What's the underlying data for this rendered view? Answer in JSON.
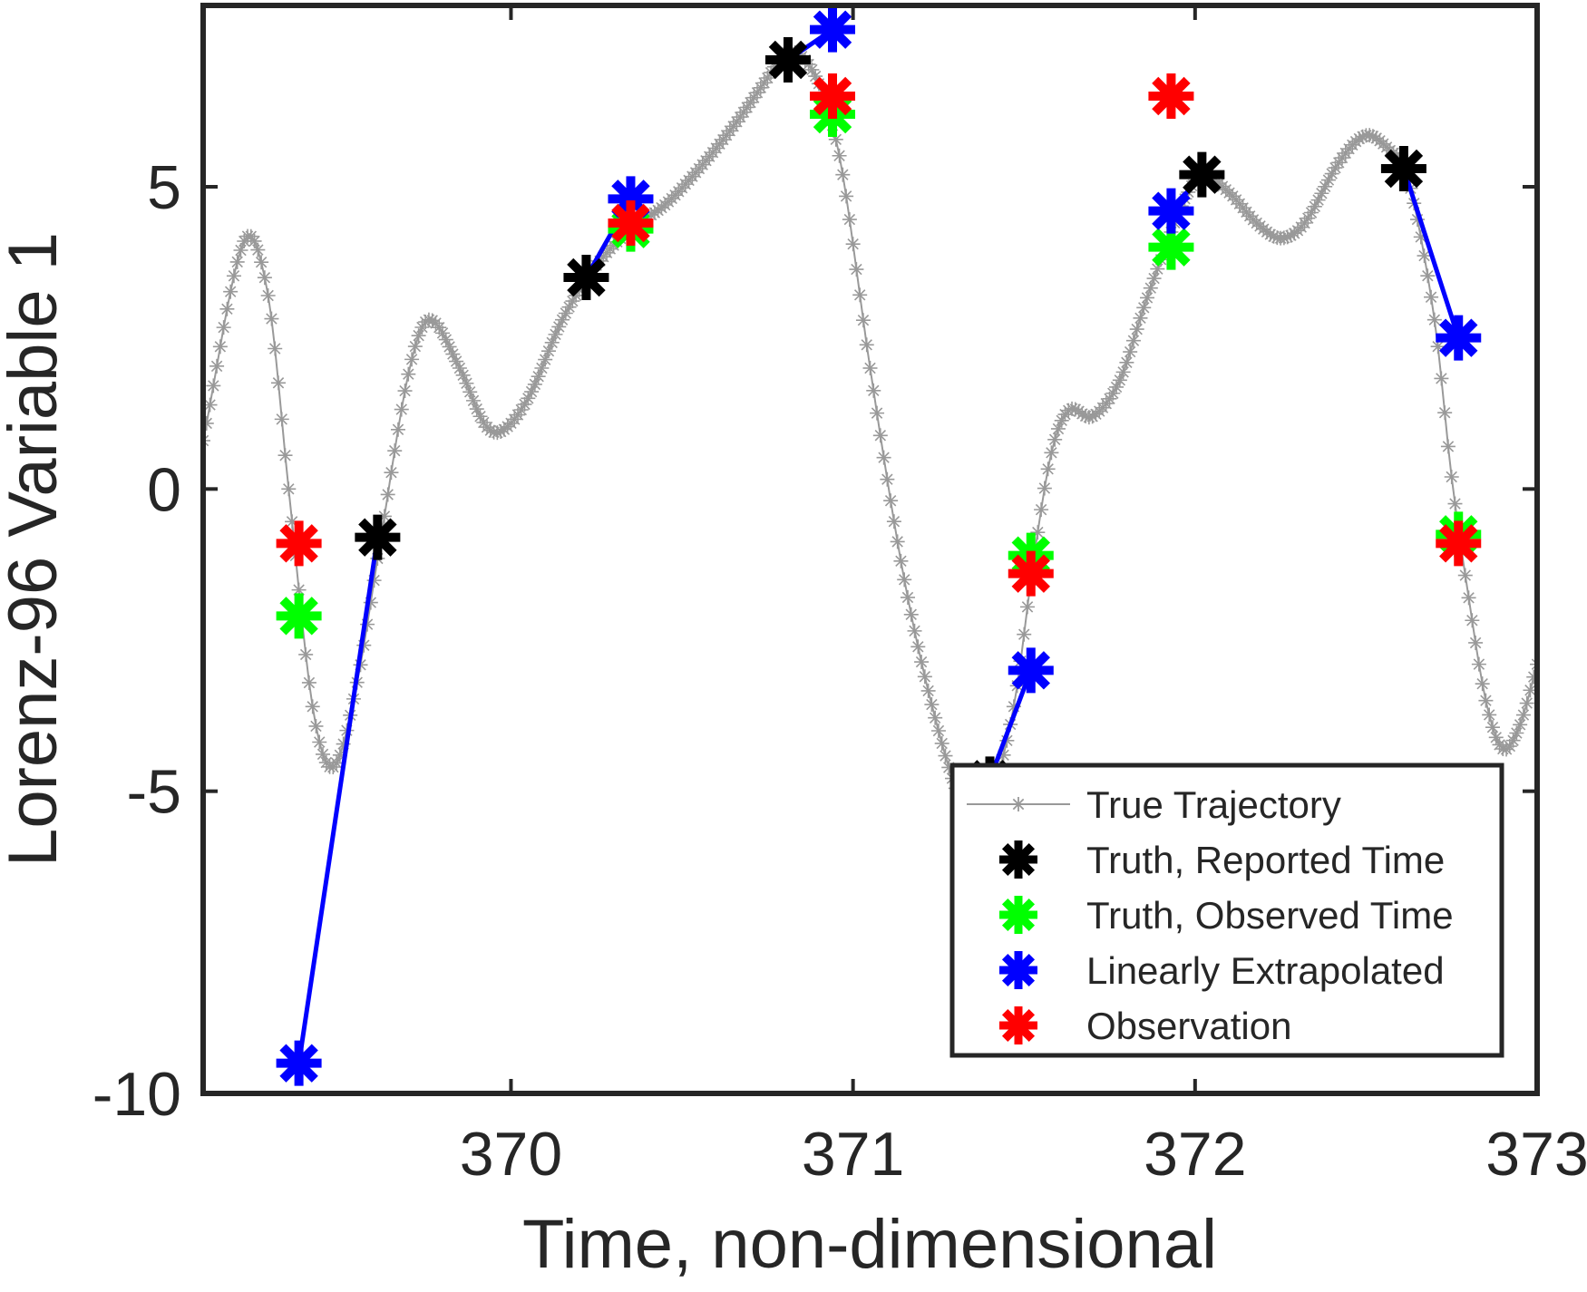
{
  "chart_data": {
    "type": "line",
    "title": "",
    "xlabel": "Time, non-dimensional",
    "ylabel": "Lorenz-96 Variable 1",
    "xlim": [
      369.1,
      373.0
    ],
    "ylim": [
      -10,
      8
    ],
    "x_ticks": [
      "370",
      "371",
      "372",
      "373"
    ],
    "y_ticks": [
      "5",
      "0",
      "-5",
      "-10"
    ],
    "x_tick_values": [
      370,
      371,
      372,
      373
    ],
    "y_tick_values": [
      5,
      0,
      -5,
      -10
    ],
    "grid": false,
    "legend_position": "bottom-right",
    "true_trajectory": {
      "name": "True Trajectory",
      "color": "#999999",
      "marker": "asterisk",
      "knots": [
        [
          369.1,
          0.8
        ],
        [
          369.22,
          4.1
        ],
        [
          369.29,
          3.2
        ],
        [
          369.35,
          0.0
        ],
        [
          369.42,
          -3.6
        ],
        [
          369.48,
          -4.6
        ],
        [
          369.55,
          -3.2
        ],
        [
          369.62,
          -0.8
        ],
        [
          369.7,
          1.9
        ],
        [
          369.76,
          2.8
        ],
        [
          369.85,
          2.0
        ],
        [
          369.92,
          1.1
        ],
        [
          369.97,
          0.95
        ],
        [
          370.05,
          1.5
        ],
        [
          370.15,
          2.8
        ],
        [
          370.25,
          3.7
        ],
        [
          370.35,
          4.3
        ],
        [
          370.45,
          4.7
        ],
        [
          370.55,
          5.3
        ],
        [
          370.65,
          6.0
        ],
        [
          370.75,
          6.8
        ],
        [
          370.8,
          7.2
        ],
        [
          370.86,
          7.1
        ],
        [
          370.92,
          6.4
        ],
        [
          370.97,
          5.2
        ],
        [
          371.05,
          2.0
        ],
        [
          371.15,
          -1.5
        ],
        [
          371.25,
          -4.0
        ],
        [
          371.33,
          -5.3
        ],
        [
          371.4,
          -5.1
        ],
        [
          371.47,
          -3.6
        ],
        [
          371.53,
          -1.1
        ],
        [
          371.58,
          0.6
        ],
        [
          371.63,
          1.3
        ],
        [
          371.7,
          1.2
        ],
        [
          371.78,
          1.8
        ],
        [
          371.85,
          3.0
        ],
        [
          371.92,
          4.1
        ],
        [
          371.97,
          4.8
        ],
        [
          372.02,
          5.2
        ],
        [
          372.1,
          4.9
        ],
        [
          372.18,
          4.4
        ],
        [
          372.25,
          4.15
        ],
        [
          372.32,
          4.4
        ],
        [
          372.42,
          5.4
        ],
        [
          372.5,
          5.85
        ],
        [
          372.57,
          5.6
        ],
        [
          372.62,
          5.2
        ],
        [
          372.7,
          2.8
        ],
        [
          372.75,
          0.2
        ],
        [
          372.8,
          -1.8
        ],
        [
          372.85,
          -3.5
        ],
        [
          372.9,
          -4.3
        ],
        [
          372.95,
          -3.9
        ],
        [
          373.0,
          -2.9
        ]
      ]
    },
    "series": [
      {
        "name": "Truth, Reported Time",
        "color": "#000000",
        "marker": "asterisk",
        "x": [
          369.61,
          370.22,
          370.81,
          371.4,
          372.02,
          372.61
        ],
        "y": [
          -0.8,
          3.5,
          7.1,
          -4.8,
          5.2,
          5.3
        ]
      },
      {
        "name": "Truth, Observed Time",
        "color": "#00ff00",
        "marker": "asterisk",
        "x": [
          369.38,
          370.35,
          370.94,
          371.52,
          371.93,
          372.77
        ],
        "y": [
          -2.1,
          4.3,
          6.2,
          -1.1,
          4.0,
          -0.75
        ]
      },
      {
        "name": "Linearly Extrapolated",
        "color": "#0000ff",
        "marker": "asterisk",
        "x": [
          369.38,
          370.35,
          370.94,
          371.52,
          371.93,
          372.77
        ],
        "y": [
          -9.5,
          4.8,
          7.6,
          -3.0,
          4.6,
          2.5
        ]
      },
      {
        "name": "Observation",
        "color": "#ff0000",
        "marker": "asterisk",
        "x": [
          369.38,
          370.35,
          370.94,
          371.52,
          371.93,
          372.77
        ],
        "y": [
          -0.9,
          4.4,
          6.5,
          -1.4,
          6.5,
          -0.9
        ]
      }
    ],
    "extrapolation_lines": {
      "color": "#0000ff",
      "segments": [
        [
          [
            369.61,
            -0.8
          ],
          [
            369.38,
            -9.5
          ]
        ],
        [
          [
            370.22,
            3.5
          ],
          [
            370.35,
            4.8
          ]
        ],
        [
          [
            370.81,
            7.1
          ],
          [
            370.94,
            7.6
          ]
        ],
        [
          [
            371.4,
            -4.8
          ],
          [
            371.52,
            -3.0
          ]
        ],
        [
          [
            372.02,
            5.2
          ],
          [
            371.93,
            4.6
          ]
        ],
        [
          [
            372.61,
            5.3
          ],
          [
            372.77,
            2.5
          ]
        ]
      ]
    },
    "legend": [
      {
        "label": "True Trajectory",
        "color": "#999999",
        "style": "line-asterisk"
      },
      {
        "label": "Truth, Reported Time",
        "color": "#000000",
        "style": "asterisk"
      },
      {
        "label": "Truth, Observed Time",
        "color": "#00ff00",
        "style": "asterisk"
      },
      {
        "label": "Linearly Extrapolated",
        "color": "#0000ff",
        "style": "asterisk"
      },
      {
        "label": "Observation",
        "color": "#ff0000",
        "style": "asterisk"
      }
    ]
  }
}
